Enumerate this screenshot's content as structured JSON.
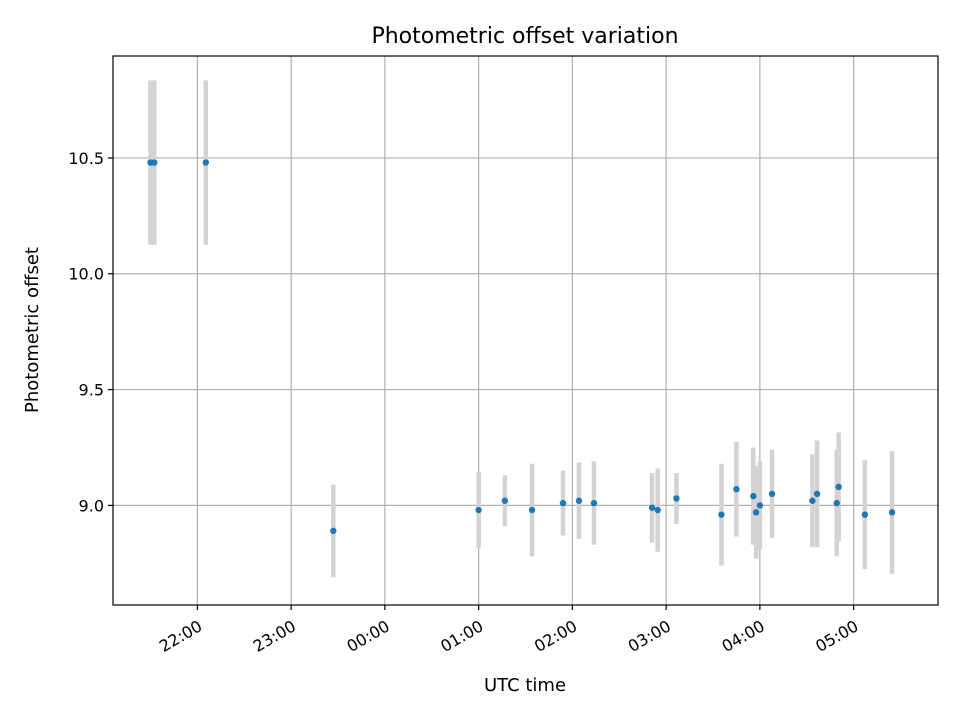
{
  "chart_data": {
    "type": "scatter",
    "title": "Photometric offset variation",
    "xlabel": "UTC time",
    "ylabel": "Photometric offset",
    "xlim": [
      21.1,
      29.9
    ],
    "ylim": [
      8.57,
      10.94
    ],
    "grid": true,
    "x_ticks": [
      {
        "value": 22,
        "label": "22:00"
      },
      {
        "value": 23,
        "label": "23:00"
      },
      {
        "value": 24,
        "label": "00:00"
      },
      {
        "value": 25,
        "label": "01:00"
      },
      {
        "value": 26,
        "label": "02:00"
      },
      {
        "value": 27,
        "label": "03:00"
      },
      {
        "value": 28,
        "label": "04:00"
      },
      {
        "value": 29,
        "label": "05:00"
      }
    ],
    "y_ticks": [
      {
        "value": 9.0,
        "label": "9.0"
      },
      {
        "value": 9.5,
        "label": "9.5"
      },
      {
        "value": 10.0,
        "label": "10.0"
      },
      {
        "value": 10.5,
        "label": "10.5"
      }
    ],
    "marker_color": "#1f77b4",
    "errorbar_color": "#d3d3d3",
    "points": [
      {
        "x": 21.5,
        "y": 10.48,
        "err": 0.355
      },
      {
        "x": 21.54,
        "y": 10.48,
        "err": 0.355
      },
      {
        "x": 22.09,
        "y": 10.48,
        "err": 0.355
      },
      {
        "x": 23.45,
        "y": 8.89,
        "err": 0.2
      },
      {
        "x": 25.0,
        "y": 8.98,
        "err": 0.165
      },
      {
        "x": 25.28,
        "y": 9.02,
        "err": 0.11
      },
      {
        "x": 25.57,
        "y": 8.98,
        "err": 0.2
      },
      {
        "x": 25.9,
        "y": 9.01,
        "err": 0.14
      },
      {
        "x": 26.07,
        "y": 9.02,
        "err": 0.165
      },
      {
        "x": 26.23,
        "y": 9.01,
        "err": 0.18
      },
      {
        "x": 26.85,
        "y": 8.99,
        "err": 0.15
      },
      {
        "x": 26.91,
        "y": 8.98,
        "err": 0.18
      },
      {
        "x": 27.11,
        "y": 9.03,
        "err": 0.11
      },
      {
        "x": 27.59,
        "y": 8.96,
        "err": 0.22
      },
      {
        "x": 27.75,
        "y": 9.07,
        "err": 0.205
      },
      {
        "x": 27.93,
        "y": 9.04,
        "err": 0.21
      },
      {
        "x": 27.96,
        "y": 8.97,
        "err": 0.2
      },
      {
        "x": 28.0,
        "y": 9.0,
        "err": 0.19
      },
      {
        "x": 28.13,
        "y": 9.05,
        "err": 0.19
      },
      {
        "x": 28.56,
        "y": 9.02,
        "err": 0.2
      },
      {
        "x": 28.61,
        "y": 9.05,
        "err": 0.23
      },
      {
        "x": 28.82,
        "y": 9.01,
        "err": 0.23
      },
      {
        "x": 28.84,
        "y": 9.08,
        "err": 0.235
      },
      {
        "x": 29.12,
        "y": 8.96,
        "err": 0.235
      },
      {
        "x": 29.41,
        "y": 8.97,
        "err": 0.265
      }
    ]
  }
}
